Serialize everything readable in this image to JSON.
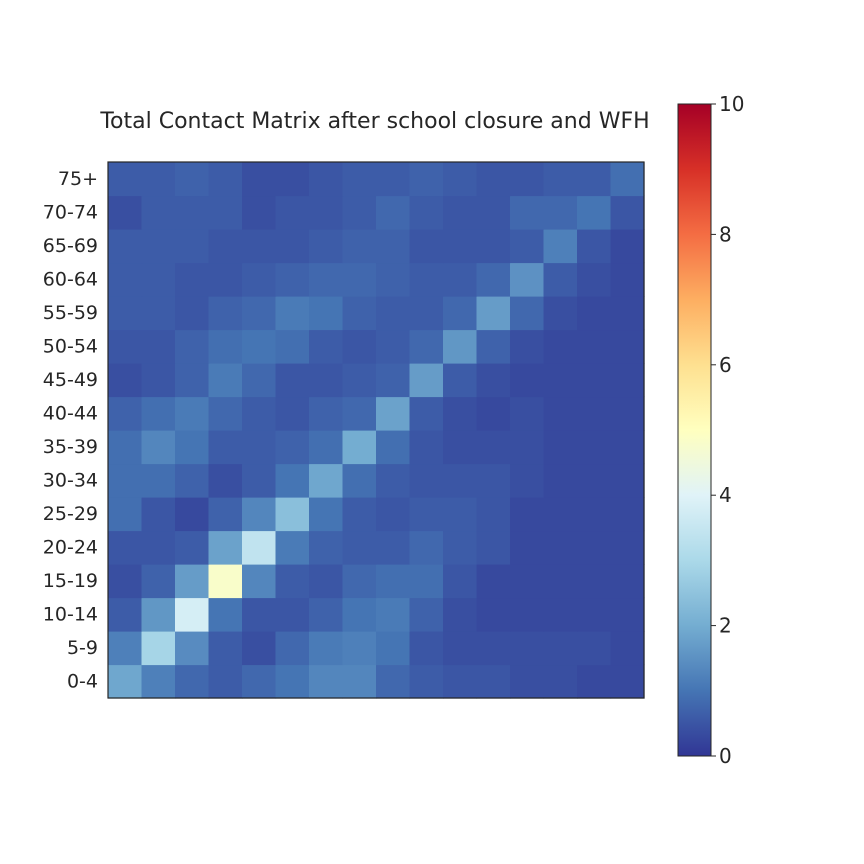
{
  "chart_data": {
    "type": "heatmap",
    "title": "Total Contact Matrix after school closure and WFH",
    "xlabel": "",
    "ylabel": "",
    "y_categories": [
      "0-4",
      "5-9",
      "10-14",
      "15-19",
      "20-24",
      "25-29",
      "30-34",
      "35-39",
      "40-44",
      "45-49",
      "50-54",
      "55-59",
      "60-64",
      "65-69",
      "70-74",
      "75+"
    ],
    "x_tick_labels_shown": false,
    "colormap": "RdYlBu_r",
    "colorbar": {
      "min": 0,
      "max": 10,
      "ticks": [
        0,
        2,
        4,
        6,
        8,
        10
      ]
    },
    "rows_bottom_to_top": [
      [
        1.9,
        1.2,
        0.8,
        0.6,
        0.8,
        1.0,
        1.3,
        1.3,
        0.8,
        0.6,
        0.5,
        0.5,
        0.4,
        0.4,
        0.3,
        0.3
      ],
      [
        1.2,
        2.9,
        1.4,
        0.6,
        0.4,
        0.8,
        1.1,
        1.2,
        1.0,
        0.5,
        0.4,
        0.4,
        0.4,
        0.4,
        0.4,
        0.3
      ],
      [
        0.6,
        1.6,
        3.8,
        1.0,
        0.5,
        0.5,
        0.7,
        1.0,
        1.1,
        0.7,
        0.4,
        0.3,
        0.3,
        0.3,
        0.3,
        0.3
      ],
      [
        0.4,
        0.7,
        1.7,
        4.8,
        1.3,
        0.6,
        0.5,
        0.8,
        0.9,
        0.9,
        0.5,
        0.3,
        0.3,
        0.3,
        0.3,
        0.3
      ],
      [
        0.5,
        0.5,
        0.6,
        1.8,
        3.4,
        1.1,
        0.7,
        0.6,
        0.6,
        0.8,
        0.6,
        0.5,
        0.3,
        0.3,
        0.3,
        0.3
      ],
      [
        0.9,
        0.5,
        0.3,
        0.7,
        1.3,
        2.4,
        1.0,
        0.6,
        0.5,
        0.6,
        0.6,
        0.5,
        0.3,
        0.3,
        0.3,
        0.3
      ],
      [
        0.9,
        0.9,
        0.7,
        0.4,
        0.6,
        1.0,
        1.9,
        0.9,
        0.6,
        0.5,
        0.5,
        0.5,
        0.4,
        0.3,
        0.3,
        0.3
      ],
      [
        0.9,
        1.3,
        1.0,
        0.6,
        0.6,
        0.7,
        0.9,
        2.0,
        0.9,
        0.5,
        0.4,
        0.4,
        0.4,
        0.3,
        0.3,
        0.3
      ],
      [
        0.7,
        0.9,
        1.1,
        0.8,
        0.6,
        0.5,
        0.7,
        0.8,
        1.8,
        0.6,
        0.4,
        0.3,
        0.4,
        0.3,
        0.3,
        0.3
      ],
      [
        0.4,
        0.5,
        0.7,
        1.1,
        0.8,
        0.5,
        0.5,
        0.6,
        0.7,
        1.7,
        0.6,
        0.4,
        0.3,
        0.3,
        0.3,
        0.3
      ],
      [
        0.5,
        0.5,
        0.7,
        0.9,
        1.0,
        0.9,
        0.6,
        0.5,
        0.6,
        0.8,
        1.6,
        0.7,
        0.4,
        0.3,
        0.3,
        0.3
      ],
      [
        0.6,
        0.6,
        0.5,
        0.7,
        0.8,
        1.1,
        1.0,
        0.7,
        0.6,
        0.6,
        0.8,
        1.7,
        0.8,
        0.4,
        0.3,
        0.3
      ],
      [
        0.6,
        0.6,
        0.5,
        0.5,
        0.6,
        0.7,
        0.8,
        0.8,
        0.7,
        0.6,
        0.6,
        0.8,
        1.5,
        0.6,
        0.4,
        0.3
      ],
      [
        0.6,
        0.6,
        0.6,
        0.5,
        0.5,
        0.5,
        0.6,
        0.7,
        0.7,
        0.5,
        0.5,
        0.5,
        0.6,
        1.2,
        0.5,
        0.3
      ],
      [
        0.4,
        0.6,
        0.6,
        0.6,
        0.4,
        0.5,
        0.5,
        0.6,
        0.8,
        0.6,
        0.5,
        0.5,
        0.8,
        0.8,
        1.0,
        0.5
      ],
      [
        0.6,
        0.6,
        0.7,
        0.6,
        0.4,
        0.4,
        0.5,
        0.6,
        0.6,
        0.7,
        0.6,
        0.5,
        0.5,
        0.6,
        0.6,
        0.9
      ]
    ]
  }
}
